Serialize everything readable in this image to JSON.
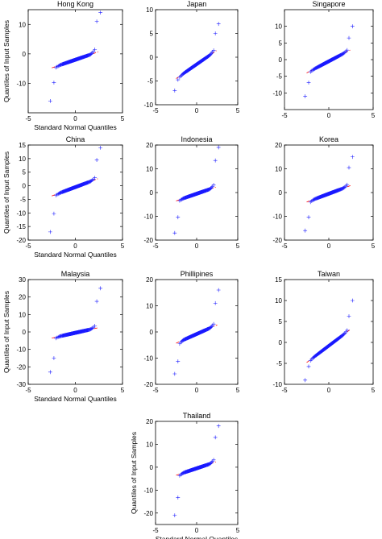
{
  "figure": {
    "marker_color": "#1a1aff",
    "refline_color": "#ff0000",
    "marker": "+"
  },
  "chart_data": [
    {
      "type": "scatter",
      "title": "Hong Kong",
      "xlabel": "Standard Normal Quantiles",
      "ylabel": "Quantiles of Input Samples",
      "xlim": [
        -5,
        5
      ],
      "ylim": [
        -20,
        15
      ],
      "xticks": [
        "-5",
        "0",
        "5"
      ],
      "yticks": [
        "10",
        "0",
        "-10"
      ],
      "xticks_v": [
        -5,
        0,
        5
      ],
      "yticks_v": [
        10,
        0,
        -10
      ],
      "tails": [
        -16,
        -3.5,
        -2.5,
        8,
        14
      ],
      "ref": [
        -2.0,
        1.1
      ]
    },
    {
      "type": "scatter",
      "title": "Japan",
      "xlabel": "",
      "ylabel": "",
      "xlim": [
        -5,
        5
      ],
      "ylim": [
        -10,
        10
      ],
      "xticks": [
        "-5",
        "0",
        "5"
      ],
      "yticks": [
        "10",
        "5",
        "0",
        "-5",
        "-10"
      ],
      "xticks_v": [
        -5,
        0,
        5
      ],
      "yticks_v": [
        10,
        5,
        0,
        -5,
        -10
      ],
      "tails": [
        -7,
        -2.5,
        -1.5,
        3.0,
        7
      ],
      "ref": [
        -1.5,
        1.2
      ]
    },
    {
      "type": "scatter",
      "title": "Singapore",
      "xlabel": "",
      "ylabel": "",
      "xlim": [
        -5,
        5
      ],
      "ylim": [
        -15,
        15
      ],
      "xticks": [
        "-5",
        "0",
        "5"
      ],
      "yticks": [
        "10",
        "5",
        "0",
        "-5",
        "-10"
      ],
      "xticks_v": [
        -5,
        0,
        5
      ],
      "yticks_v": [
        10,
        5,
        0,
        -5,
        -10
      ],
      "tails": [
        -11,
        -2.8,
        -1.8,
        3.0,
        10
      ],
      "ref": [
        -0.5,
        1.4
      ]
    },
    {
      "type": "scatter",
      "title": "China",
      "xlabel": "Standard Normal Quantiles",
      "ylabel": "Quantiles of Input Samples",
      "xlim": [
        -5,
        5
      ],
      "ylim": [
        -20,
        15
      ],
      "xticks": [
        "-5",
        "0",
        "5"
      ],
      "yticks": [
        "15",
        "10",
        "5",
        "0",
        "-5",
        "-10",
        "-15",
        "-20"
      ],
      "xticks_v": [
        -5,
        0,
        5
      ],
      "yticks_v": [
        15,
        10,
        5,
        0,
        -5,
        -10,
        -15,
        -20
      ],
      "tails": [
        -17,
        -3.5,
        -2.5,
        5,
        14
      ],
      "ref": [
        -0.5,
        1.3
      ]
    },
    {
      "type": "scatter",
      "title": "Indonesia",
      "xlabel": "",
      "ylabel": "",
      "xlim": [
        -5,
        5
      ],
      "ylim": [
        -20,
        20
      ],
      "xticks": [
        "-5",
        "0",
        "5"
      ],
      "yticks": [
        "20",
        "10",
        "0",
        "-10",
        "-20"
      ],
      "xticks_v": [
        -5,
        0,
        5
      ],
      "yticks_v": [
        20,
        10,
        0,
        -10,
        -20
      ],
      "tails": [
        -17,
        -3.8,
        -2.8,
        8,
        19
      ],
      "ref": [
        -0.5,
        1.2
      ]
    },
    {
      "type": "scatter",
      "title": "Korea",
      "xlabel": "",
      "ylabel": "",
      "xlim": [
        -5,
        5
      ],
      "ylim": [
        -20,
        20
      ],
      "xticks": [
        "-5",
        "0",
        "5"
      ],
      "yticks": [
        "20",
        "10",
        "0",
        "-10",
        "-20"
      ],
      "xticks_v": [
        -5,
        0,
        5
      ],
      "yticks_v": [
        20,
        10,
        0,
        -10,
        -20
      ],
      "tails": [
        -16,
        -4.8,
        -4.0,
        6,
        15
      ],
      "ref": [
        -0.5,
        1.4
      ]
    },
    {
      "type": "scatter",
      "title": "Malaysia",
      "xlabel": "Standard Normal Quantiles",
      "ylabel": "Quantiles of Input Samples",
      "xlim": [
        -5,
        5
      ],
      "ylim": [
        -30,
        30
      ],
      "xticks": [
        "-5",
        "0",
        "5"
      ],
      "yticks": [
        "30",
        "20",
        "10",
        "0",
        "-10",
        "-20",
        "-30"
      ],
      "xticks_v": [
        -5,
        0,
        5
      ],
      "yticks_v": [
        30,
        20,
        10,
        0,
        -10,
        -20,
        -30
      ],
      "tails": [
        -23,
        -7,
        -4,
        10,
        25
      ],
      "ref": [
        -0.5,
        1.2
      ]
    },
    {
      "type": "scatter",
      "title": "Phillipines",
      "xlabel": "",
      "ylabel": "",
      "xlim": [
        -5,
        5
      ],
      "ylim": [
        -20,
        20
      ],
      "xticks": [
        "-5",
        "0",
        "5"
      ],
      "yticks": [
        "20",
        "10",
        "0",
        "-10",
        "-20"
      ],
      "xticks_v": [
        -5,
        0,
        5
      ],
      "yticks_v": [
        20,
        10,
        0,
        -10,
        -20
      ],
      "tails": [
        -16,
        -6.5,
        -5.5,
        6,
        16
      ],
      "ref": [
        -0.8,
        1.4
      ]
    },
    {
      "type": "scatter",
      "title": "Taiwan",
      "xlabel": "",
      "ylabel": "",
      "xlim": [
        -5,
        5
      ],
      "ylim": [
        -10,
        15
      ],
      "xticks": [
        "-5",
        "0",
        "5"
      ],
      "yticks": [
        "15",
        "10",
        "5",
        "0",
        "-5",
        "-10"
      ],
      "xticks_v": [
        -5,
        0,
        5
      ],
      "yticks_v": [
        15,
        10,
        5,
        0,
        -5,
        -10
      ],
      "tails": [
        -9,
        -2.5,
        -1.5,
        2.5,
        10
      ],
      "ref": [
        -0.8,
        1.6
      ]
    },
    {
      "type": "scatter",
      "title": "Thailand",
      "xlabel": "Standard Normal Quantiles",
      "ylabel": "Quantiles of Input Samples",
      "xlim": [
        -5,
        5
      ],
      "ylim": [
        -25,
        20
      ],
      "xticks": [
        "-5",
        "0",
        "5"
      ],
      "yticks": [
        "20",
        "10",
        "0",
        "-10",
        "-20"
      ],
      "xticks_v": [
        -5,
        0,
        5
      ],
      "yticks_v": [
        20,
        10,
        0,
        -10,
        -20
      ],
      "tails": [
        -21,
        -5.5,
        -4.5,
        8,
        18
      ],
      "ref": [
        -0.5,
        1.2
      ]
    }
  ]
}
